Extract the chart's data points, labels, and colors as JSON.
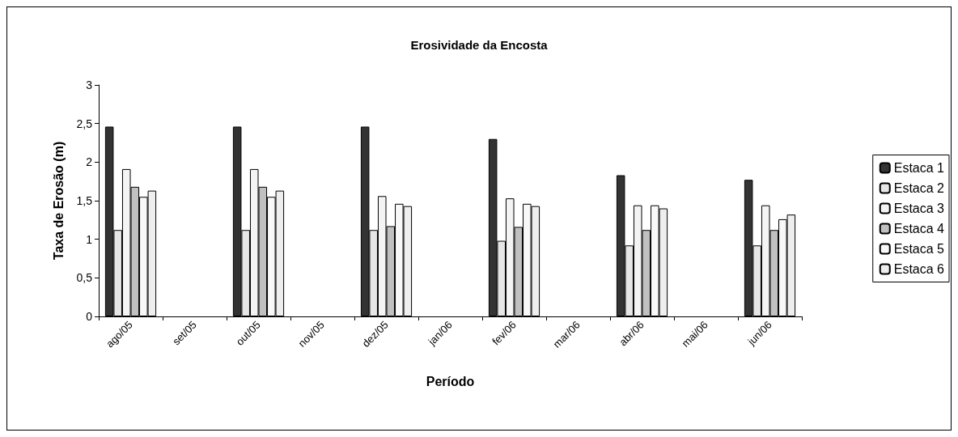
{
  "chart_data": {
    "type": "bar",
    "title": "Erosividade da Encosta",
    "xlabel": "Período",
    "ylabel": "Taxa de Erosão (m)",
    "categories": [
      "ago/05",
      "set/05",
      "out/05",
      "nov/05",
      "dez/05",
      "jan/06",
      "fev/06",
      "mar/06",
      "abr/06",
      "mai/06",
      "jun/06"
    ],
    "series": [
      {
        "name": "Estaca 1",
        "color": "#333333",
        "values": [
          2.46,
          null,
          2.46,
          null,
          2.46,
          null,
          2.3,
          null,
          1.83,
          null,
          1.77
        ]
      },
      {
        "name": "Estaca 2",
        "color": "#e6e6e6",
        "values": [
          1.12,
          null,
          1.12,
          null,
          1.12,
          null,
          0.98,
          null,
          0.92,
          null,
          0.92
        ]
      },
      {
        "name": "Estaca 3",
        "color": "#f4f4f4",
        "values": [
          1.91,
          null,
          1.91,
          null,
          1.56,
          null,
          1.53,
          null,
          1.44,
          null,
          1.44
        ]
      },
      {
        "name": "Estaca 4",
        "color": "#c0c0c0",
        "values": [
          1.68,
          null,
          1.68,
          null,
          1.17,
          null,
          1.16,
          null,
          1.12,
          null,
          1.12
        ]
      },
      {
        "name": "Estaca 5",
        "color": "#f8f8f8",
        "values": [
          1.55,
          null,
          1.55,
          null,
          1.46,
          null,
          1.46,
          null,
          1.44,
          null,
          1.26
        ]
      },
      {
        "name": "Estaca 6",
        "color": "#eeeeee",
        "values": [
          1.63,
          null,
          1.63,
          null,
          1.43,
          null,
          1.43,
          null,
          1.4,
          null,
          1.32
        ]
      }
    ],
    "ylim": [
      0,
      3
    ],
    "yticks": [
      0,
      {
        "value": 0.5,
        "label": "0,5"
      },
      1,
      {
        "value": 1.5,
        "label": "1,5"
      },
      2,
      {
        "value": 2.5,
        "label": "2,5"
      },
      3
    ],
    "grid": false,
    "legend": "right"
  }
}
